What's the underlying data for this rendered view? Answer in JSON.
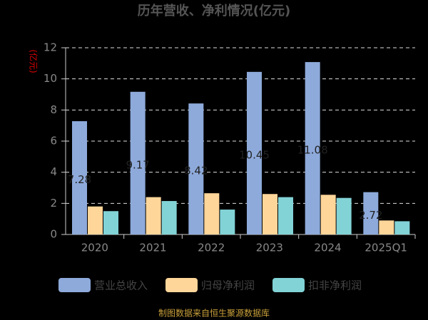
{
  "chart_data": {
    "type": "bar",
    "title": "历年营收、净利情况(亿元)",
    "y_label": "(亿元)",
    "categories": [
      "2020",
      "2021",
      "2022",
      "2023",
      "2024",
      "2025Q1"
    ],
    "series": [
      {
        "name": "营业总收入",
        "color": "#8eaadb",
        "values": [
          7.28,
          9.17,
          8.42,
          10.45,
          11.08,
          2.72
        ]
      },
      {
        "name": "归母净利润",
        "color": "#ffd699",
        "values": [
          1.8,
          2.4,
          2.65,
          2.6,
          2.55,
          0.9
        ]
      },
      {
        "name": "扣非净利润",
        "color": "#82d3d6",
        "values": [
          1.5,
          2.15,
          1.6,
          2.4,
          2.35,
          0.85
        ]
      }
    ],
    "ylim": [
      0,
      12
    ],
    "yticks": [
      0,
      2,
      4,
      6,
      8,
      10,
      12
    ],
    "grid": true,
    "source": "制图数据来自恒生聚源数据库"
  }
}
